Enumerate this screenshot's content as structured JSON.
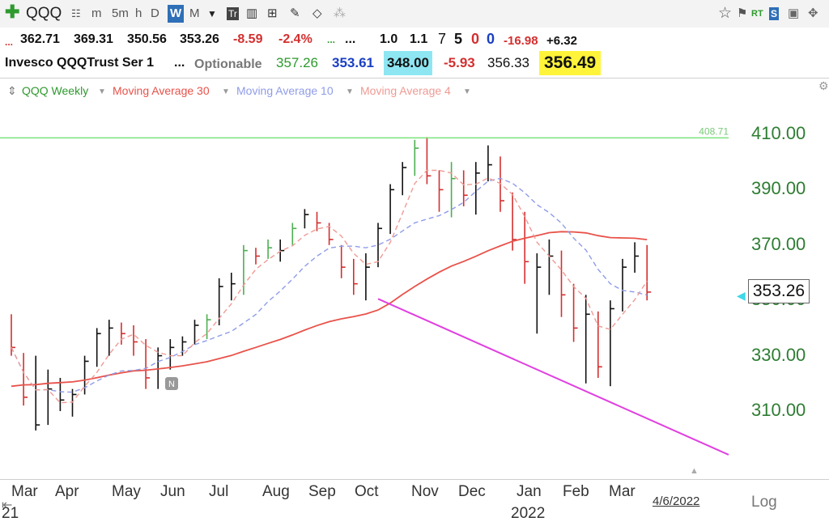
{
  "toolbar": {
    "symbol": "QQQ",
    "intervals": [
      "m",
      "5m",
      "h",
      "D",
      "W",
      "M"
    ],
    "selected_interval": "W"
  },
  "quote": {
    "row1": {
      "open": "362.71",
      "high": "369.31",
      "low": "350.56",
      "last": "353.26",
      "change": "-8.59",
      "change_pct": "-2.4%",
      "dots1": "...",
      "dots2": "...",
      "v1": "1.0",
      "v2": "1.1",
      "n1": "7",
      "n2": "5",
      "n3": "0",
      "n4": "0",
      "neg": "-16.98",
      "pos": "+6.32"
    },
    "row2": {
      "name": "Invesco QQQTrust Ser 1",
      "dots": "...",
      "optionable": "Optionable",
      "v1": "357.26",
      "v2": "353.61",
      "v3": "348.00",
      "v4": "-5.93",
      "v5": "356.33",
      "v6": "356.49"
    }
  },
  "legend": {
    "series": "QQQ Weekly",
    "ma30": "Moving Average 30",
    "ma10": "Moving Average 10",
    "ma4": "Moving Average 4"
  },
  "colors": {
    "ma30": "#e8524a",
    "ma10": "#8f9ce8",
    "ma4": "#ef9a94",
    "up_bar": "#4caf50",
    "down_bar": "#d32f2f",
    "neutral_bar": "#111111",
    "resistance": "#7be37b",
    "trendline": "#e040e0",
    "axis_text": "#2e7d32"
  },
  "chart_data": {
    "type": "line",
    "title": "QQQ Weekly",
    "y_ticks": [
      "410.00",
      "390.00",
      "370.00",
      "350.00",
      "330.00",
      "310.00"
    ],
    "ylim": [
      300,
      420
    ],
    "x_months": [
      "Mar",
      "Apr",
      "May",
      "Jun",
      "Jul",
      "Aug",
      "Sep",
      "Oct",
      "Nov",
      "Dec",
      "Jan",
      "Feb",
      "Mar"
    ],
    "year_label": "2022",
    "year_start_label": "21",
    "date_label": "4/6/2022",
    "scale": "Log",
    "resistance_value": 408.71,
    "resistance_label": "408.71",
    "last_price": "353.26",
    "trendline": {
      "from": {
        "week": 30,
        "value": 350.56
      },
      "to": {
        "week": 60,
        "value": 303
      }
    },
    "weekly_bars": [
      {
        "h": 345,
        "l": 330,
        "c": 333,
        "t": "d"
      },
      {
        "h": 331,
        "l": 312,
        "c": 315,
        "t": "d"
      },
      {
        "h": 330,
        "l": 303,
        "c": 305,
        "t": "n"
      },
      {
        "h": 325,
        "l": 305,
        "c": 318,
        "t": "n"
      },
      {
        "h": 322,
        "l": 310,
        "c": 314,
        "t": "n"
      },
      {
        "h": 318,
        "l": 308,
        "c": 316,
        "t": "n"
      },
      {
        "h": 330,
        "l": 316,
        "c": 328,
        "t": "n"
      },
      {
        "h": 340,
        "l": 326,
        "c": 338,
        "t": "n"
      },
      {
        "h": 343,
        "l": 330,
        "c": 340,
        "t": "n"
      },
      {
        "h": 342,
        "l": 334,
        "c": 338,
        "t": "d"
      },
      {
        "h": 341,
        "l": 330,
        "c": 335,
        "t": "d"
      },
      {
        "h": 336,
        "l": 318,
        "c": 322,
        "t": "d"
      },
      {
        "h": 333,
        "l": 318,
        "c": 330,
        "t": "n"
      },
      {
        "h": 336,
        "l": 325,
        "c": 333,
        "t": "n"
      },
      {
        "h": 337,
        "l": 330,
        "c": 335,
        "t": "n"
      },
      {
        "h": 343,
        "l": 334,
        "c": 341,
        "t": "n"
      },
      {
        "h": 345,
        "l": 336,
        "c": 343,
        "t": "u"
      },
      {
        "h": 358,
        "l": 341,
        "c": 355,
        "t": "n"
      },
      {
        "h": 360,
        "l": 350,
        "c": 356,
        "t": "n"
      },
      {
        "h": 370,
        "l": 352,
        "c": 368,
        "t": "u"
      },
      {
        "h": 369,
        "l": 363,
        "c": 366,
        "t": "d"
      },
      {
        "h": 372,
        "l": 365,
        "c": 369,
        "t": "u"
      },
      {
        "h": 372,
        "l": 364,
        "c": 368,
        "t": "n"
      },
      {
        "h": 378,
        "l": 370,
        "c": 376,
        "t": "u"
      },
      {
        "h": 383,
        "l": 376,
        "c": 381,
        "t": "n"
      },
      {
        "h": 382,
        "l": 375,
        "c": 378,
        "t": "d"
      },
      {
        "h": 378,
        "l": 370,
        "c": 372,
        "t": "d"
      },
      {
        "h": 370,
        "l": 358,
        "c": 362,
        "t": "d"
      },
      {
        "h": 365,
        "l": 352,
        "c": 356,
        "t": "d"
      },
      {
        "h": 367,
        "l": 350,
        "c": 362,
        "t": "n"
      },
      {
        "h": 378,
        "l": 362,
        "c": 376,
        "t": "n"
      },
      {
        "h": 392,
        "l": 374,
        "c": 390,
        "t": "n"
      },
      {
        "h": 400,
        "l": 388,
        "c": 398,
        "t": "n"
      },
      {
        "h": 408,
        "l": 395,
        "c": 405,
        "t": "u"
      },
      {
        "h": 409,
        "l": 392,
        "c": 395,
        "t": "d"
      },
      {
        "h": 397,
        "l": 382,
        "c": 390,
        "t": "d"
      },
      {
        "h": 400,
        "l": 380,
        "c": 394,
        "t": "u"
      },
      {
        "h": 397,
        "l": 384,
        "c": 388,
        "t": "d"
      },
      {
        "h": 400,
        "l": 381,
        "c": 396,
        "t": "n"
      },
      {
        "h": 406,
        "l": 393,
        "c": 399,
        "t": "n"
      },
      {
        "h": 402,
        "l": 382,
        "c": 386,
        "t": "d"
      },
      {
        "h": 389,
        "l": 368,
        "c": 372,
        "t": "d"
      },
      {
        "h": 382,
        "l": 356,
        "c": 364,
        "t": "d"
      },
      {
        "h": 367,
        "l": 338,
        "c": 362,
        "t": "n"
      },
      {
        "h": 372,
        "l": 352,
        "c": 366,
        "t": "n"
      },
      {
        "h": 368,
        "l": 344,
        "c": 352,
        "t": "d"
      },
      {
        "h": 356,
        "l": 335,
        "c": 340,
        "t": "d"
      },
      {
        "h": 352,
        "l": 320,
        "c": 345,
        "t": "n"
      },
      {
        "h": 346,
        "l": 322,
        "c": 326,
        "t": "d"
      },
      {
        "h": 350,
        "l": 319,
        "c": 347,
        "t": "n"
      },
      {
        "h": 365,
        "l": 346,
        "c": 362,
        "t": "n"
      },
      {
        "h": 371,
        "l": 360,
        "c": 366,
        "t": "n"
      },
      {
        "h": 370,
        "l": 350,
        "c": 353,
        "t": "d"
      }
    ]
  }
}
